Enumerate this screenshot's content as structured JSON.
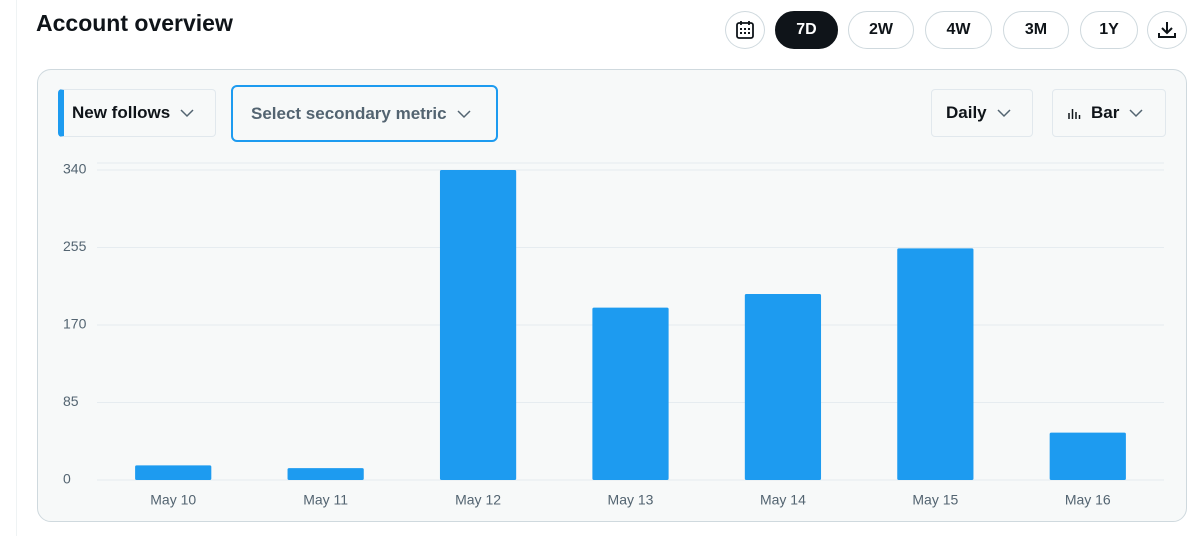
{
  "header": {
    "title": "Account overview",
    "ranges": [
      "7D",
      "2W",
      "4W",
      "3M",
      "1Y"
    ]
  },
  "controls": {
    "primary_metric": "New follows",
    "secondary_metric": "Select secondary metric",
    "interval": "Daily",
    "chart_style": "Bar"
  },
  "chart_data": {
    "type": "bar",
    "categories": [
      "May 10",
      "May 11",
      "May 12",
      "May 13",
      "May 14",
      "May 15",
      "May 16"
    ],
    "series": [
      {
        "name": "New follows",
        "color": "#1d9bf0",
        "values": [
          16,
          13,
          340,
          189,
          204,
          254,
          52
        ]
      }
    ],
    "ylim": [
      0,
      340
    ],
    "yticks": [
      0,
      85,
      170,
      255,
      340
    ],
    "grid": true
  }
}
